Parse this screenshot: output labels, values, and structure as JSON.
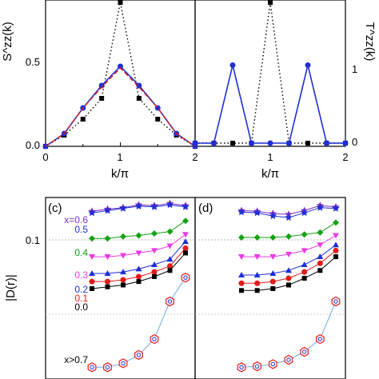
{
  "chart_data": [
    {
      "type": "line",
      "panel": "top-left",
      "ylabel": "S^zz(k)",
      "xlabel": "k/π",
      "xlim": [
        0,
        2
      ],
      "ylim": [
        0,
        0.9
      ],
      "x_ticks": [
        "0",
        "1",
        "2"
      ],
      "y_ticks": [
        "0.0",
        "0.5"
      ],
      "series": [
        {
          "style": "dotted-black-squares",
          "color": "#000000",
          "x": [
            0,
            0.25,
            0.5,
            0.75,
            1,
            1.25,
            1.5,
            1.75,
            2
          ],
          "y": [
            0.0,
            0.07,
            0.17,
            0.3,
            0.9,
            0.3,
            0.17,
            0.07,
            0.0
          ]
        },
        {
          "style": "blue-circles",
          "color": "#1f2ed6",
          "x": [
            0,
            0.25,
            0.5,
            0.75,
            1,
            1.25,
            1.5,
            1.75,
            2
          ],
          "y": [
            0.0,
            0.08,
            0.24,
            0.38,
            0.5,
            0.38,
            0.24,
            0.08,
            0.0
          ]
        },
        {
          "style": "red-dashed",
          "color": "#e21b1b",
          "x": [
            0,
            0.25,
            0.5,
            0.75,
            1,
            1.25,
            1.5,
            1.75,
            2
          ],
          "y": [
            0.0,
            0.08,
            0.24,
            0.37,
            0.49,
            0.37,
            0.24,
            0.08,
            0.0
          ]
        }
      ]
    },
    {
      "type": "line",
      "panel": "top-right",
      "ylabel": "T^zz(k)",
      "xlabel": "k/π",
      "xlim": [
        0,
        2
      ],
      "ylim": [
        0,
        1.75
      ],
      "x_ticks": [
        "0",
        "1",
        "2"
      ],
      "y_ticks": [
        "0",
        "1"
      ],
      "series": [
        {
          "style": "dotted-black-squares",
          "color": "#000000",
          "x": [
            0,
            0.25,
            0.5,
            0.75,
            1,
            1.25,
            1.5,
            1.75,
            2
          ],
          "y": [
            0.0,
            0.0,
            0.0,
            0.0,
            1.75,
            0.0,
            0.0,
            0.0,
            0.0
          ]
        },
        {
          "style": "blue-circles",
          "color": "#1f2ed6",
          "x": [
            0,
            0.25,
            0.5,
            0.75,
            1,
            1.25,
            1.5,
            1.75,
            2
          ],
          "y": [
            0.0,
            0.0,
            0.97,
            0.0,
            0.0,
            0.0,
            0.97,
            0.0,
            0.0
          ]
        }
      ]
    },
    {
      "type": "line",
      "panel": "(c)",
      "ylabel": "|D(r)|",
      "y_scale": "log",
      "y_ticks": [
        "0.1"
      ],
      "series": [
        {
          "label": "x=0.6",
          "color": "#7b2fbe",
          "marker": "star",
          "x": [
            1,
            2,
            3,
            4,
            5,
            6,
            7
          ],
          "y": [
            0.115,
            0.118,
            0.12,
            0.124,
            0.123,
            0.126,
            0.123
          ]
        },
        {
          "label": "0.5",
          "color": "#1f2ed6",
          "marker": "star",
          "x": [
            1,
            2,
            3,
            4,
            5,
            6,
            7
          ],
          "y": [
            0.113,
            0.116,
            0.119,
            0.122,
            0.121,
            0.124,
            0.121
          ]
        },
        {
          "label": "0.4",
          "color": "#14a014",
          "marker": "diamond",
          "x": [
            1,
            2,
            3,
            4,
            5,
            6,
            7
          ],
          "y": [
            0.084,
            0.084,
            0.086,
            0.087,
            0.089,
            0.091,
            0.103
          ]
        },
        {
          "label": "0.3",
          "color": "#e83ce0",
          "marker": "triangle-down",
          "x": [
            1,
            2,
            3,
            4,
            5,
            6,
            7
          ],
          "y": [
            0.068,
            0.068,
            0.069,
            0.071,
            0.073,
            0.077,
            0.088
          ]
        },
        {
          "label": "0.2",
          "color": "#1f2ed6",
          "marker": "triangle-up",
          "x": [
            1,
            2,
            3,
            4,
            5,
            6,
            7
          ],
          "y": [
            0.056,
            0.056,
            0.057,
            0.059,
            0.062,
            0.066,
            0.081
          ]
        },
        {
          "label": "0.1",
          "color": "#e21b1b",
          "marker": "circle",
          "x": [
            1,
            2,
            3,
            4,
            5,
            6,
            7
          ],
          "y": [
            0.051,
            0.051,
            0.052,
            0.054,
            0.057,
            0.061,
            0.075
          ]
        },
        {
          "label": "0.0",
          "color": "#000000",
          "marker": "square",
          "x": [
            1,
            2,
            3,
            4,
            5,
            6,
            7
          ],
          "y": [
            0.047,
            0.048,
            0.049,
            0.051,
            0.054,
            0.058,
            0.071
          ]
        },
        {
          "label": "x>0.7",
          "color": "#6fa8dc",
          "marker": "hexagon",
          "x": [
            1,
            2,
            3,
            4,
            5,
            6,
            7
          ],
          "y": [
            0.0189,
            0.0189,
            0.0198,
            0.0218,
            0.0262,
            0.0405,
            0.0534
          ]
        }
      ]
    },
    {
      "type": "line",
      "panel": "(d)",
      "y_scale": "log",
      "series": [
        {
          "label": "0.6",
          "color": "#7b2fbe",
          "marker": "star",
          "x": [
            1,
            2,
            3,
            4,
            5,
            6,
            7
          ],
          "y": [
            0.116,
            0.115,
            0.112,
            0.111,
            0.116,
            0.123,
            0.121
          ]
        },
        {
          "label": "0.5",
          "color": "#1f2ed6",
          "marker": "star",
          "x": [
            1,
            2,
            3,
            4,
            5,
            6,
            7
          ],
          "y": [
            0.114,
            0.113,
            0.109,
            0.107,
            0.113,
            0.12,
            0.119
          ]
        },
        {
          "label": "0.4",
          "color": "#14a014",
          "marker": "diamond",
          "x": [
            1,
            2,
            3,
            4,
            5,
            6,
            7
          ],
          "y": [
            0.085,
            0.085,
            0.085,
            0.086,
            0.088,
            0.09,
            0.101
          ]
        },
        {
          "label": "0.3",
          "color": "#e83ce0",
          "marker": "triangle-down",
          "x": [
            1,
            2,
            3,
            4,
            5,
            6,
            7
          ],
          "y": [
            0.068,
            0.068,
            0.068,
            0.07,
            0.073,
            0.078,
            0.087
          ]
        },
        {
          "label": "0.2",
          "color": "#1f2ed6",
          "marker": "triangle-up",
          "x": [
            1,
            2,
            3,
            4,
            5,
            6,
            7
          ],
          "y": [
            0.055,
            0.055,
            0.056,
            0.058,
            0.062,
            0.068,
            0.078
          ]
        },
        {
          "label": "0.1",
          "color": "#e21b1b",
          "marker": "circle",
          "x": [
            1,
            2,
            3,
            4,
            5,
            6,
            7
          ],
          "y": [
            0.05,
            0.05,
            0.051,
            0.053,
            0.057,
            0.063,
            0.073
          ]
        },
        {
          "label": "0.0",
          "color": "#000000",
          "marker": "square",
          "x": [
            1,
            2,
            3,
            4,
            5,
            6,
            7
          ],
          "y": [
            0.046,
            0.046,
            0.047,
            0.049,
            0.053,
            0.058,
            0.068
          ]
        },
        {
          "label": "x>0.7",
          "color": "#6fa8dc",
          "marker": "hexagon",
          "x": [
            1,
            2,
            3,
            4,
            5,
            6,
            7
          ],
          "y": [
            0.0189,
            0.0191,
            0.0196,
            0.0206,
            0.0226,
            0.0262,
            0.0405
          ]
        }
      ]
    }
  ],
  "panel_labels": {
    "c": "(c)",
    "d": "(d)"
  },
  "labels_c": [
    "x=0.6",
    "0.5",
    "0.4",
    "0.3",
    "0.2",
    "0.1",
    "0.0",
    "x>0.7"
  ]
}
